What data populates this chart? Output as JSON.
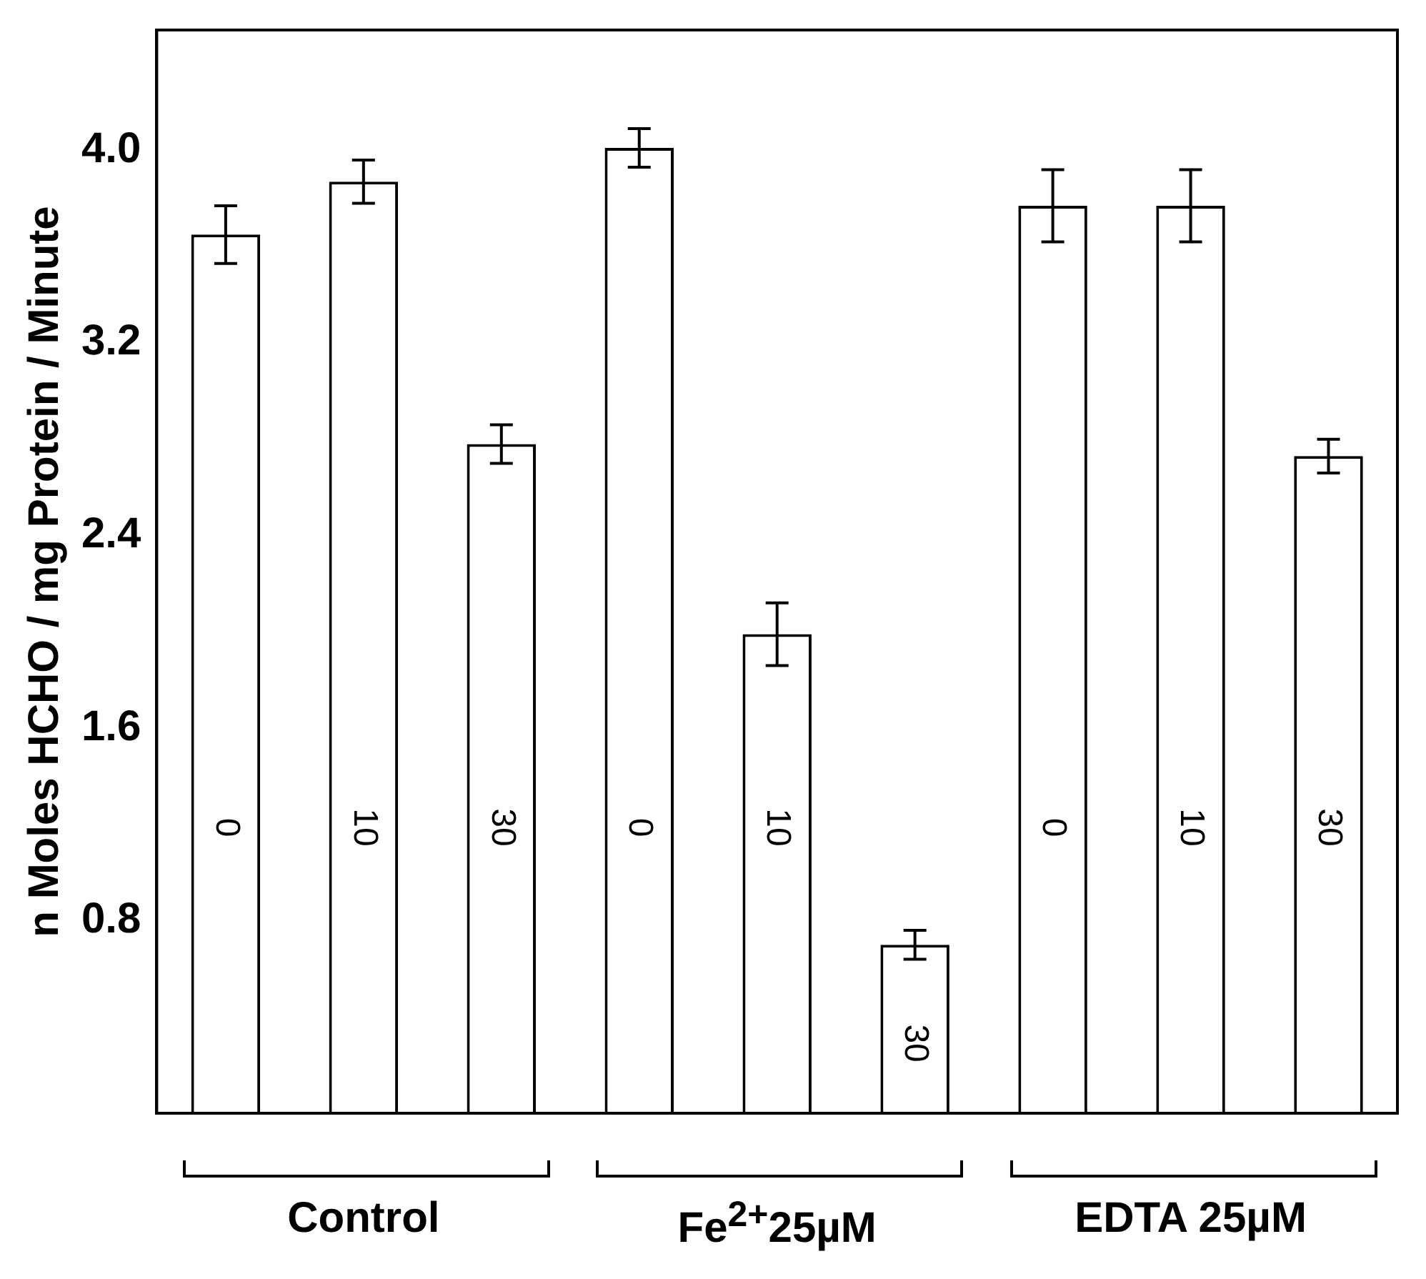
{
  "chart_data": {
    "type": "bar",
    "ylabel": "n Moles HCHO / mg Protein / Minute",
    "categories": [
      "0",
      "10",
      "30",
      "0",
      "10",
      "30",
      "0",
      "10",
      "30"
    ],
    "values": [
      3.65,
      3.87,
      2.78,
      4.01,
      1.99,
      0.7,
      3.77,
      3.77,
      2.73
    ],
    "errors": [
      0.12,
      0.09,
      0.08,
      0.08,
      0.13,
      0.06,
      0.15,
      0.15,
      0.07
    ],
    "color": "#ffffff",
    "ylim": [
      0,
      4.5
    ],
    "yticks": [
      {
        "value": 0.8,
        "label": "0.8"
      },
      {
        "value": 1.6,
        "label": "1.6"
      },
      {
        "value": 2.4,
        "label": "2.4"
      },
      {
        "value": 3.2,
        "label": "3.2"
      },
      {
        "value": 4.0,
        "label": "4.0"
      }
    ],
    "annotations": [
      "Control",
      "Fe$^{2+}$25µM",
      "EDTA 25µM"
    ],
    "grid": false,
    "legend": false
  }
}
